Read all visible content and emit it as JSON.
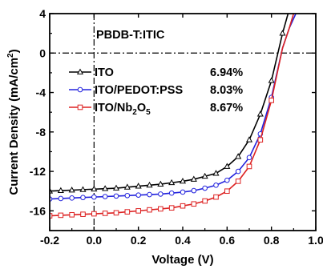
{
  "chart_data": {
    "type": "line",
    "xlabel": "Voltage (V)",
    "ylabel_prefix": "Current Density (mA/cm",
    "ylabel_sup": "2",
    "ylabel_suffix": ")",
    "xlim": [
      -0.2,
      1.0
    ],
    "ylim": [
      -18,
      4
    ],
    "xticks": [
      -0.2,
      0.0,
      0.2,
      0.4,
      0.6,
      0.8,
      1.0
    ],
    "xtick_labels": [
      "-0.2",
      "0.0",
      "0.2",
      "0.4",
      "0.6",
      "0.8",
      "1.0"
    ],
    "yticks": [
      4,
      0,
      -4,
      -8,
      -12,
      -16
    ],
    "ytick_labels": [
      "4",
      "0",
      "-4",
      "-8",
      "-12",
      "-16"
    ],
    "annotation": "PBDB-T:ITIC",
    "reference_lines": {
      "x": 0,
      "y": 0,
      "style": "dash-dot"
    },
    "legend_position": "center-left",
    "series": [
      {
        "name": "ITO",
        "name_parts": [
          {
            "text": "ITO"
          }
        ],
        "pce": "6.94%",
        "color": "#000000",
        "marker": "triangle",
        "x": [
          -0.2,
          -0.15,
          -0.1,
          -0.05,
          0.0,
          0.05,
          0.1,
          0.15,
          0.2,
          0.25,
          0.3,
          0.35,
          0.4,
          0.45,
          0.5,
          0.55,
          0.6,
          0.65,
          0.7,
          0.75,
          0.8,
          0.85,
          0.875
        ],
        "y": [
          -14.0,
          -13.95,
          -13.9,
          -13.85,
          -13.8,
          -13.75,
          -13.7,
          -13.6,
          -13.5,
          -13.4,
          -13.3,
          -13.15,
          -13.0,
          -12.8,
          -12.5,
          -12.2,
          -11.5,
          -10.5,
          -8.8,
          -6.2,
          -2.8,
          2.0,
          4.0
        ],
        "markers_x": [
          -0.2,
          -0.15,
          -0.1,
          -0.05,
          0.0,
          0.05,
          0.1,
          0.15,
          0.2,
          0.25,
          0.3,
          0.35,
          0.4,
          0.45,
          0.5,
          0.55,
          0.6,
          0.65,
          0.7,
          0.75,
          0.8,
          0.85
        ]
      },
      {
        "name": "ITO/PEDOT:PSS",
        "name_parts": [
          {
            "text": "ITO/PEDOT:PSS"
          }
        ],
        "pce": "8.03%",
        "color": "#2222dd",
        "marker": "circle",
        "x": [
          -0.2,
          -0.15,
          -0.1,
          -0.05,
          0.0,
          0.05,
          0.1,
          0.15,
          0.2,
          0.25,
          0.3,
          0.35,
          0.4,
          0.45,
          0.5,
          0.55,
          0.6,
          0.65,
          0.7,
          0.75,
          0.8,
          0.85,
          0.88,
          0.91
        ],
        "y": [
          -14.8,
          -14.75,
          -14.7,
          -14.65,
          -14.6,
          -14.55,
          -14.5,
          -14.45,
          -14.4,
          -14.35,
          -14.3,
          -14.2,
          -14.1,
          -13.95,
          -13.7,
          -13.4,
          -12.9,
          -12.0,
          -10.6,
          -8.2,
          -4.5,
          0.5,
          2.5,
          4.0
        ],
        "markers_x": [
          -0.2,
          -0.15,
          -0.1,
          -0.05,
          0.0,
          0.05,
          0.1,
          0.15,
          0.2,
          0.25,
          0.3,
          0.35,
          0.4,
          0.45,
          0.5,
          0.55,
          0.6,
          0.65,
          0.7,
          0.75,
          0.8
        ]
      },
      {
        "name": "ITO/Nb2O5",
        "name_parts": [
          {
            "text": "ITO/Nb"
          },
          {
            "text": "2",
            "sub": true
          },
          {
            "text": "O"
          },
          {
            "text": "5",
            "sub": true
          }
        ],
        "pce": "8.67%",
        "color": "#dd2222",
        "marker": "square",
        "x": [
          -0.2,
          -0.15,
          -0.1,
          -0.05,
          0.0,
          0.05,
          0.1,
          0.15,
          0.2,
          0.25,
          0.3,
          0.35,
          0.4,
          0.45,
          0.5,
          0.55,
          0.6,
          0.65,
          0.7,
          0.75,
          0.8,
          0.85,
          0.88,
          0.9
        ],
        "y": [
          -16.5,
          -16.45,
          -16.4,
          -16.35,
          -16.3,
          -16.25,
          -16.2,
          -16.1,
          -16.0,
          -15.9,
          -15.8,
          -15.7,
          -15.5,
          -15.3,
          -15.0,
          -14.6,
          -14.0,
          -13.0,
          -11.5,
          -8.8,
          -4.8,
          0.5,
          2.5,
          4.0
        ],
        "markers_x": [
          -0.2,
          -0.15,
          -0.1,
          -0.05,
          0.0,
          0.05,
          0.1,
          0.15,
          0.2,
          0.25,
          0.3,
          0.35,
          0.4,
          0.45,
          0.5,
          0.55,
          0.6,
          0.65,
          0.7,
          0.75,
          0.8
        ]
      }
    ]
  }
}
